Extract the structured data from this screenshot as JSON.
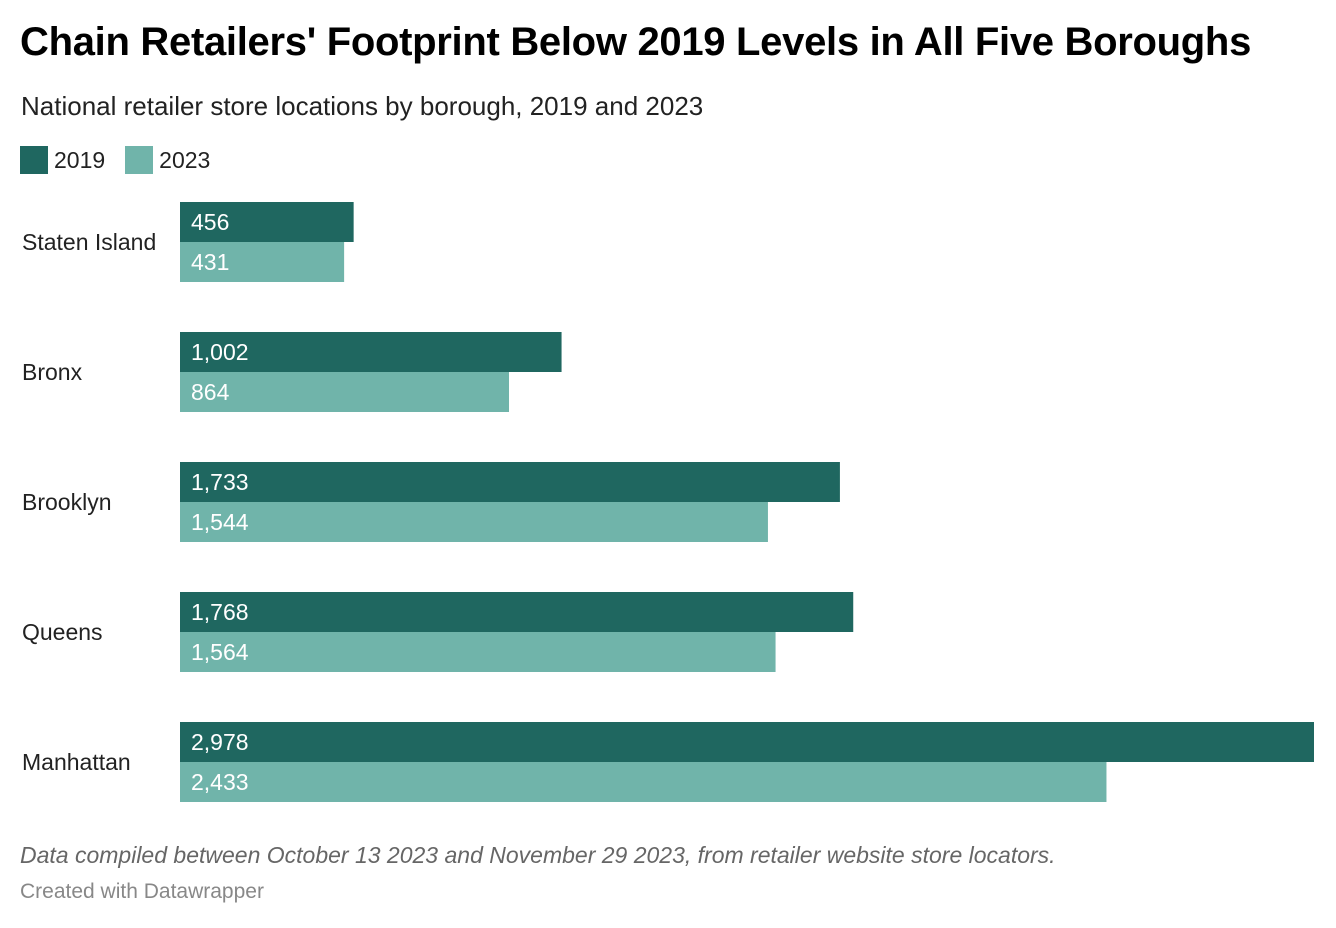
{
  "chart_data": {
    "type": "bar",
    "orientation": "horizontal",
    "title": "Chain Retailers' Footprint Below 2019 Levels in All Five Boroughs",
    "subtitle": "National retailer store locations by borough, 2019 and 2023",
    "categories": [
      "Staten Island",
      "Bronx",
      "Brooklyn",
      "Queens",
      "Manhattan"
    ],
    "series": [
      {
        "name": "2019",
        "color": "#1f6760",
        "values": [
          456,
          1002,
          1733,
          1768,
          2978
        ],
        "labels": [
          "456",
          "1,002",
          "1,733",
          "1,768",
          "2,978"
        ]
      },
      {
        "name": "2023",
        "color": "#70b4aa",
        "values": [
          431,
          864,
          1544,
          1564,
          2433
        ],
        "labels": [
          "431",
          "864",
          "1,544",
          "1,564",
          "2,433"
        ]
      }
    ],
    "xlim": [
      0,
      2978
    ],
    "legend_position": "top-left",
    "grid": false
  },
  "footer": {
    "note": "Data compiled between October 13 2023 and November 29 2023, from retailer website store locators.",
    "credit": "Created with Datawrapper"
  }
}
